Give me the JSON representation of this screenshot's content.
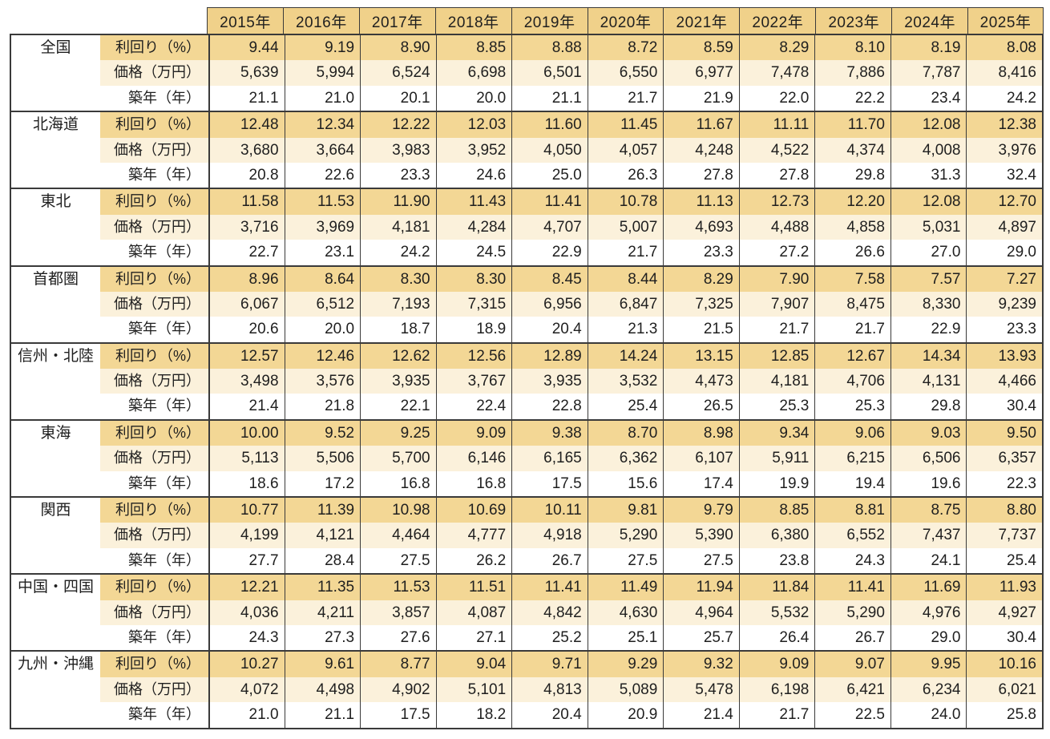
{
  "colors": {
    "border": "#3a3a3a",
    "text": "#1f1f1f",
    "header_bg": "#f0d18a",
    "yield_bg": "#f3d795",
    "price_bg": "#fbf1db"
  },
  "chart_data": {
    "type": "table",
    "columns": [
      "2015年",
      "2016年",
      "2017年",
      "2018年",
      "2019年",
      "2020年",
      "2021年",
      "2022年",
      "2023年",
      "2024年",
      "2025年"
    ],
    "metric_labels": [
      "利回り（%）",
      "価格（万円）",
      "築年（年）"
    ],
    "regions": [
      {
        "name": "全国",
        "yield": [
          "9.44",
          "9.19",
          "8.90",
          "8.85",
          "8.88",
          "8.72",
          "8.59",
          "8.29",
          "8.10",
          "8.19",
          "8.08"
        ],
        "price": [
          "5,639",
          "5,994",
          "6,524",
          "6,698",
          "6,501",
          "6,550",
          "6,977",
          "7,478",
          "7,886",
          "7,787",
          "8,416"
        ],
        "age": [
          "21.1",
          "21.0",
          "20.1",
          "20.0",
          "21.1",
          "21.7",
          "21.9",
          "22.0",
          "22.2",
          "23.4",
          "24.2"
        ]
      },
      {
        "name": "北海道",
        "yield": [
          "12.48",
          "12.34",
          "12.22",
          "12.03",
          "11.60",
          "11.45",
          "11.67",
          "11.11",
          "11.70",
          "12.08",
          "12.38"
        ],
        "price": [
          "3,680",
          "3,664",
          "3,983",
          "3,952",
          "4,050",
          "4,057",
          "4,248",
          "4,522",
          "4,374",
          "4,008",
          "3,976"
        ],
        "age": [
          "20.8",
          "22.6",
          "23.3",
          "24.6",
          "25.0",
          "26.3",
          "27.8",
          "27.8",
          "29.8",
          "31.3",
          "32.4"
        ]
      },
      {
        "name": "東北",
        "yield": [
          "11.58",
          "11.53",
          "11.90",
          "11.43",
          "11.41",
          "10.78",
          "11.13",
          "12.73",
          "12.20",
          "12.08",
          "12.70"
        ],
        "price": [
          "3,716",
          "3,969",
          "4,181",
          "4,284",
          "4,707",
          "5,007",
          "4,693",
          "4,488",
          "4,858",
          "5,031",
          "4,897"
        ],
        "age": [
          "22.7",
          "23.1",
          "24.2",
          "24.5",
          "22.9",
          "21.7",
          "23.3",
          "27.2",
          "26.6",
          "27.0",
          "29.0"
        ]
      },
      {
        "name": "首都圏",
        "yield": [
          "8.96",
          "8.64",
          "8.30",
          "8.30",
          "8.45",
          "8.44",
          "8.29",
          "7.90",
          "7.58",
          "7.57",
          "7.27"
        ],
        "price": [
          "6,067",
          "6,512",
          "7,193",
          "7,315",
          "6,956",
          "6,847",
          "7,325",
          "7,907",
          "8,475",
          "8,330",
          "9,239"
        ],
        "age": [
          "20.6",
          "20.0",
          "18.7",
          "18.9",
          "20.4",
          "21.3",
          "21.5",
          "21.7",
          "21.7",
          "22.9",
          "23.3"
        ]
      },
      {
        "name": "信州・北陸",
        "yield": [
          "12.57",
          "12.46",
          "12.62",
          "12.56",
          "12.89",
          "14.24",
          "13.15",
          "12.85",
          "12.67",
          "14.34",
          "13.93"
        ],
        "price": [
          "3,498",
          "3,576",
          "3,935",
          "3,767",
          "3,935",
          "3,532",
          "4,473",
          "4,181",
          "4,706",
          "4,131",
          "4,466"
        ],
        "age": [
          "21.4",
          "21.8",
          "22.1",
          "22.4",
          "22.8",
          "25.4",
          "26.5",
          "25.3",
          "25.3",
          "29.8",
          "30.4"
        ]
      },
      {
        "name": "東海",
        "yield": [
          "10.00",
          "9.52",
          "9.25",
          "9.09",
          "9.38",
          "8.70",
          "8.98",
          "9.34",
          "9.06",
          "9.03",
          "9.50"
        ],
        "price": [
          "5,113",
          "5,506",
          "5,700",
          "6,146",
          "6,165",
          "6,362",
          "6,107",
          "5,911",
          "6,215",
          "6,506",
          "6,357"
        ],
        "age": [
          "18.6",
          "17.2",
          "16.8",
          "16.8",
          "17.5",
          "15.6",
          "17.4",
          "19.9",
          "19.4",
          "19.6",
          "22.3"
        ]
      },
      {
        "name": "関西",
        "yield": [
          "10.77",
          "11.39",
          "10.98",
          "10.69",
          "10.11",
          "9.81",
          "9.79",
          "8.85",
          "8.81",
          "8.75",
          "8.80"
        ],
        "price": [
          "4,199",
          "4,121",
          "4,464",
          "4,777",
          "4,918",
          "5,290",
          "5,390",
          "6,380",
          "6,552",
          "7,437",
          "7,737"
        ],
        "age": [
          "27.7",
          "28.4",
          "27.5",
          "26.2",
          "26.7",
          "27.5",
          "27.5",
          "23.8",
          "24.3",
          "24.1",
          "25.4"
        ]
      },
      {
        "name": "中国・四国",
        "yield": [
          "12.21",
          "11.35",
          "11.53",
          "11.51",
          "11.41",
          "11.49",
          "11.94",
          "11.84",
          "11.41",
          "11.69",
          "11.93"
        ],
        "price": [
          "4,036",
          "4,211",
          "3,857",
          "4,087",
          "4,842",
          "4,630",
          "4,964",
          "5,532",
          "5,290",
          "4,976",
          "4,927"
        ],
        "age": [
          "24.3",
          "27.3",
          "27.6",
          "27.1",
          "25.2",
          "25.1",
          "25.7",
          "26.4",
          "26.7",
          "29.0",
          "30.4"
        ]
      },
      {
        "name": "九州・沖縄",
        "yield": [
          "10.27",
          "9.61",
          "8.77",
          "9.04",
          "9.71",
          "9.29",
          "9.32",
          "9.09",
          "9.07",
          "9.95",
          "10.16"
        ],
        "price": [
          "4,072",
          "4,498",
          "4,902",
          "5,101",
          "4,813",
          "5,089",
          "5,478",
          "6,198",
          "6,421",
          "6,234",
          "6,021"
        ],
        "age": [
          "21.0",
          "21.1",
          "17.5",
          "18.2",
          "20.4",
          "20.9",
          "21.4",
          "21.7",
          "22.5",
          "24.0",
          "25.8"
        ]
      }
    ]
  }
}
